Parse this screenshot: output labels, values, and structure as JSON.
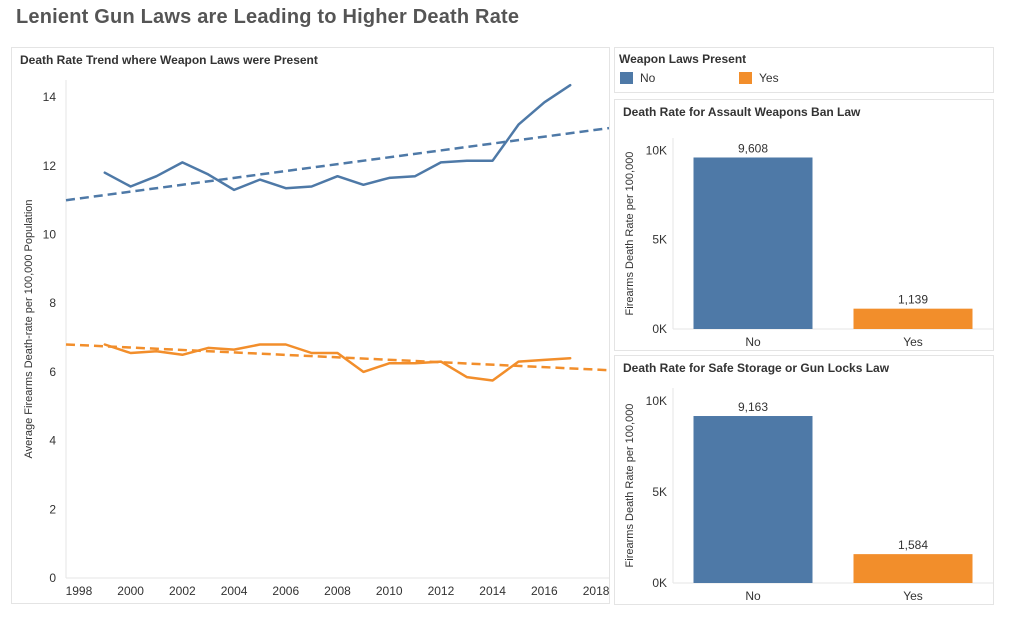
{
  "dashboard": {
    "title": "Lenient Gun Laws are Leading to Higher Death Rate"
  },
  "legend": {
    "title": "Weapon Laws Present",
    "items": [
      {
        "label": "No",
        "color": "#4e79a7"
      },
      {
        "label": "Yes",
        "color": "#f28e2b"
      }
    ]
  },
  "chart_data": [
    {
      "type": "line",
      "title": "Death Rate Trend where Weapon Laws were Present",
      "xlabel": "",
      "ylabel": "Average Firearms Death-rate per 100,000 Population",
      "xlim": [
        1997.5,
        2018.5
      ],
      "ylim": [
        0,
        14.5
      ],
      "x_ticks": [
        1998,
        2000,
        2002,
        2004,
        2006,
        2008,
        2010,
        2012,
        2014,
        2016,
        2018
      ],
      "y_ticks": [
        0,
        2,
        4,
        6,
        8,
        10,
        12,
        14
      ],
      "grid": false,
      "series": [
        {
          "name": "No",
          "color": "#4e79a7",
          "x": [
            1999,
            2000,
            2001,
            2002,
            2003,
            2004,
            2005,
            2006,
            2007,
            2008,
            2009,
            2010,
            2011,
            2012,
            2013,
            2014,
            2015,
            2016,
            2017
          ],
          "y": [
            11.8,
            11.4,
            11.7,
            12.1,
            11.75,
            11.3,
            11.6,
            11.35,
            11.4,
            11.7,
            11.45,
            11.65,
            11.7,
            12.1,
            12.15,
            12.15,
            13.2,
            13.85,
            14.35
          ],
          "trend": {
            "x": [
              1997.5,
              2018.5
            ],
            "y": [
              11.0,
              13.1
            ]
          }
        },
        {
          "name": "Yes",
          "color": "#f28e2b",
          "x": [
            1999,
            2000,
            2001,
            2002,
            2003,
            2004,
            2005,
            2006,
            2007,
            2008,
            2009,
            2010,
            2011,
            2012,
            2013,
            2014,
            2015,
            2016,
            2017
          ],
          "y": [
            6.8,
            6.55,
            6.6,
            6.5,
            6.7,
            6.65,
            6.8,
            6.8,
            6.55,
            6.55,
            6.0,
            6.25,
            6.25,
            6.3,
            5.85,
            5.75,
            6.3,
            6.35,
            6.4
          ],
          "trend": {
            "x": [
              1997.5,
              2018.5
            ],
            "y": [
              6.8,
              6.05
            ]
          }
        }
      ]
    },
    {
      "type": "bar",
      "title": "Death Rate for Assault Weapons Ban Law",
      "ylabel": "Firearms Death Rate per 100,000",
      "categories": [
        "No",
        "Yes"
      ],
      "values": [
        9608,
        1139
      ],
      "value_labels": [
        "9,608",
        "1,139"
      ],
      "colors": [
        "#4e79a7",
        "#f28e2b"
      ],
      "ylim": [
        0,
        10700
      ],
      "y_ticks": [
        0,
        5000,
        10000
      ],
      "y_tick_labels": [
        "0K",
        "5K",
        "10K"
      ]
    },
    {
      "type": "bar",
      "title": "Death Rate for Safe Storage or Gun Locks Law",
      "ylabel": "Firearms Death Rate per 100,000",
      "categories": [
        "No",
        "Yes"
      ],
      "values": [
        9163,
        1584
      ],
      "value_labels": [
        "9,163",
        "1,584"
      ],
      "colors": [
        "#4e79a7",
        "#f28e2b"
      ],
      "ylim": [
        0,
        10700
      ],
      "y_ticks": [
        0,
        5000,
        10000
      ],
      "y_tick_labels": [
        "0K",
        "5K",
        "10K"
      ]
    }
  ]
}
